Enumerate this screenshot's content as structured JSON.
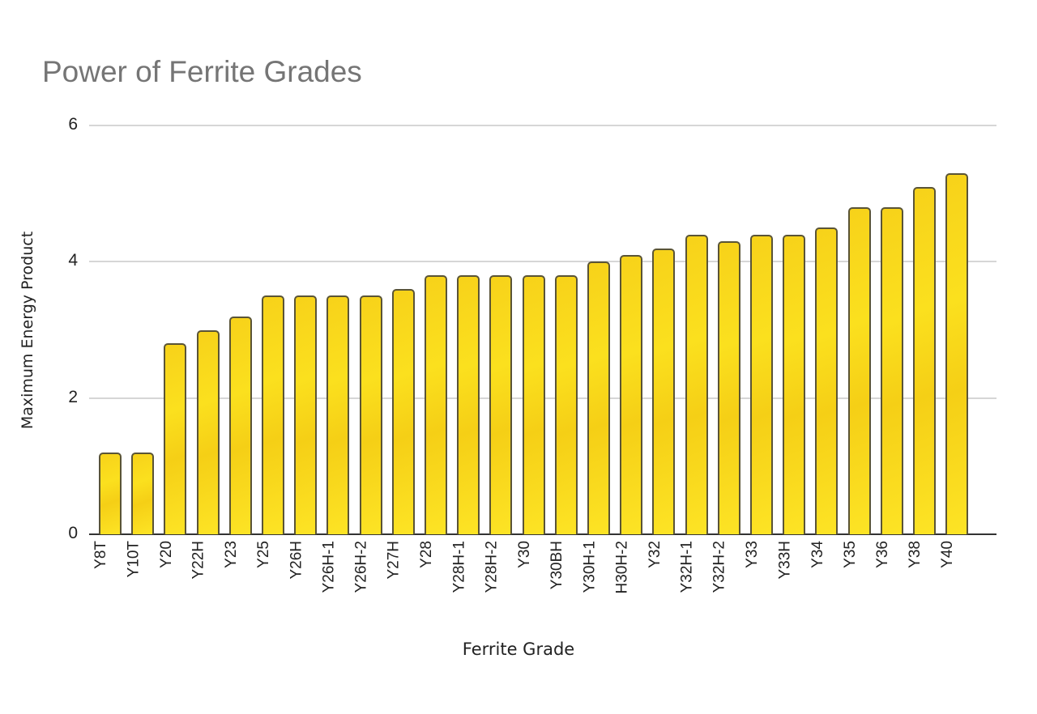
{
  "chart_data": {
    "type": "bar",
    "title": "Power of Ferrite Grades",
    "xlabel": "Ferrite Grade",
    "ylabel": "Maximum Energy Product",
    "ylim": [
      0,
      6
    ],
    "yticks": [
      0,
      2,
      4,
      6
    ],
    "grid": true,
    "legend": "none",
    "bar_color": "#f8d41a",
    "bar_edge_color": "#5a5436",
    "categories": [
      "Y8T",
      "Y10T",
      "Y20",
      "Y22H",
      "Y23",
      "Y25",
      "Y26H",
      "Y26H-1",
      "Y26H-2",
      "Y27H",
      "Y28",
      "Y28H-1",
      "Y28H-2",
      "Y30",
      "Y30BH",
      "Y30H-1",
      "H30H-2",
      "Y32",
      "Y32H-1",
      "Y32H-2",
      "Y33",
      "Y33H",
      "Y34",
      "Y35",
      "Y36",
      "Y38",
      "Y40"
    ],
    "values": [
      1.2,
      1.2,
      2.8,
      3.0,
      3.2,
      3.5,
      3.5,
      3.5,
      3.5,
      3.6,
      3.8,
      3.8,
      3.8,
      3.8,
      3.8,
      4.0,
      4.1,
      4.2,
      4.4,
      4.3,
      4.4,
      4.4,
      4.5,
      4.8,
      4.8,
      5.1,
      5.3
    ]
  }
}
